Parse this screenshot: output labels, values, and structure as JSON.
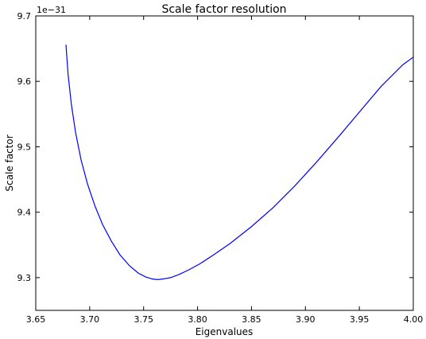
{
  "chart_data": {
    "type": "line",
    "title": "Scale factor resolution",
    "xlabel": "Eigenvalues",
    "ylabel": "Scale factor",
    "y_offset_label": "1e−31",
    "xlim": [
      3.65,
      4.0
    ],
    "ylim": [
      9.25,
      9.7
    ],
    "xticks": [
      3.65,
      3.7,
      3.75,
      3.8,
      3.85,
      3.9,
      3.95,
      4.0
    ],
    "xtick_labels": [
      "3.65",
      "3.70",
      "3.75",
      "3.80",
      "3.85",
      "3.90",
      "3.95",
      "4.00"
    ],
    "yticks": [
      9.3,
      9.4,
      9.5,
      9.6,
      9.7
    ],
    "ytick_labels": [
      "9.3",
      "9.4",
      "9.5",
      "9.6",
      "9.7"
    ],
    "grid": false,
    "line_color": "#0000ff",
    "series": [
      {
        "x": [
          3.678,
          3.68,
          3.683,
          3.687,
          3.692,
          3.698,
          3.705,
          3.712,
          3.72,
          3.728,
          3.737,
          3.745,
          3.752,
          3.758,
          3.763,
          3.768,
          3.775,
          3.783,
          3.792,
          3.802,
          3.815,
          3.83,
          3.85,
          3.87,
          3.89,
          3.91,
          3.93,
          3.95,
          3.97,
          3.99,
          4.0
        ],
        "y": [
          9.656,
          9.61,
          9.565,
          9.521,
          9.48,
          9.443,
          9.409,
          9.381,
          9.356,
          9.335,
          9.318,
          9.307,
          9.301,
          9.298,
          9.297,
          9.298,
          9.3,
          9.305,
          9.312,
          9.321,
          9.335,
          9.352,
          9.378,
          9.407,
          9.44,
          9.476,
          9.514,
          9.553,
          9.592,
          9.625,
          9.637
        ]
      }
    ]
  }
}
